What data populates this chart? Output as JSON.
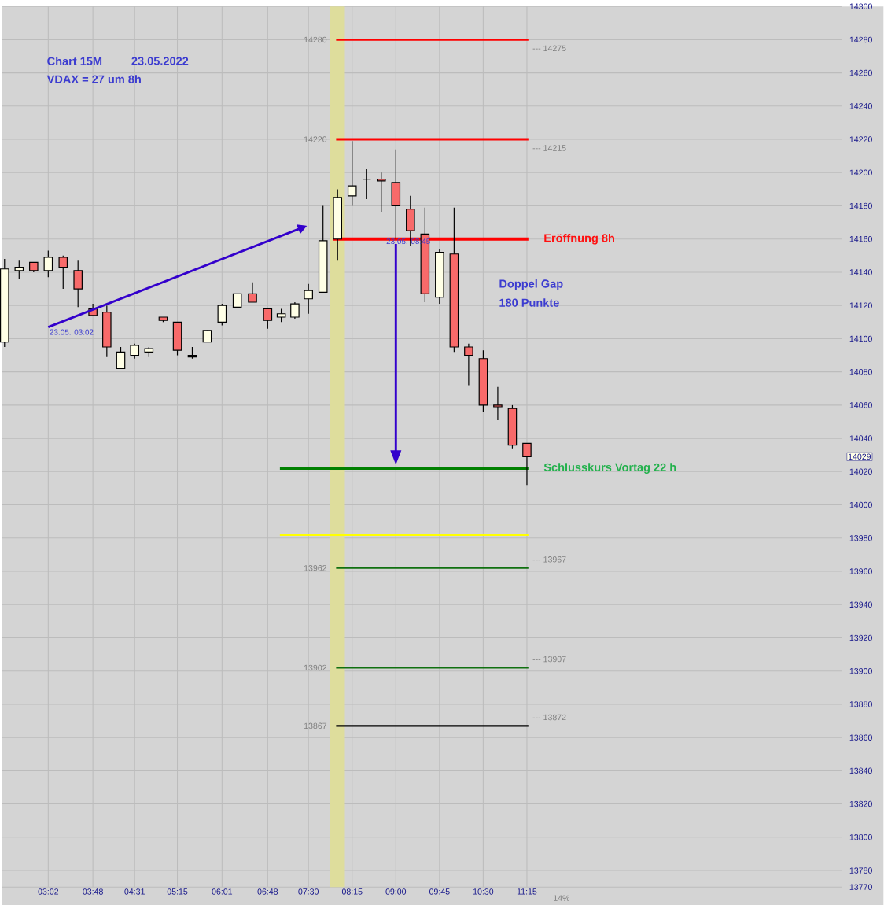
{
  "chart_data": {
    "type": "candlestick",
    "title": "Chart 15M",
    "subtitle": "23.05.2022",
    "x": [
      2.2833,
      2.5333,
      2.7833,
      3.0333,
      3.2889,
      3.5444,
      3.8,
      4.0389,
      4.2778,
      4.5167,
      4.7611,
      5.0056,
      5.25,
      5.5056,
      5.7611,
      6.0167,
      6.2778,
      6.5389,
      6.8,
      7.0333,
      7.2667,
      7.5,
      7.75,
      8.0,
      8.25,
      8.5,
      8.75,
      9.0,
      9.25,
      9.5,
      9.75,
      10.0,
      10.25,
      10.5,
      10.75,
      11.0,
      11.25
    ],
    "xlim": [
      2.24,
      16.65
    ],
    "xticks": [
      {
        "value": 3.0333,
        "label": "03:02"
      },
      {
        "value": 3.8,
        "label": "03:48"
      },
      {
        "value": 4.5167,
        "label": "04:31"
      },
      {
        "value": 5.25,
        "label": "05:15"
      },
      {
        "value": 6.0167,
        "label": "06:01"
      },
      {
        "value": 6.8,
        "label": "06:48"
      },
      {
        "value": 7.5,
        "label": "07:30"
      },
      {
        "value": 8.25,
        "label": "08:15"
      },
      {
        "value": 9.0,
        "label": "09:00"
      },
      {
        "value": 9.75,
        "label": "09:45"
      },
      {
        "value": 10.5,
        "label": "10:30"
      },
      {
        "value": 11.25,
        "label": "11:15"
      }
    ],
    "ohlc": [
      [
        14098,
        14148,
        14095,
        14142
      ],
      [
        14141,
        14147,
        14136,
        14143
      ],
      [
        14146,
        14146,
        14140,
        14141
      ],
      [
        14141,
        14153,
        14137,
        14149
      ],
      [
        14149,
        14150,
        14130,
        14143
      ],
      [
        14141,
        14147,
        14119,
        14130
      ],
      [
        14118,
        14121,
        14114,
        14114
      ],
      [
        14116,
        14120,
        14089,
        14095
      ],
      [
        14082,
        14095,
        14082,
        14092
      ],
      [
        14090,
        14097,
        14088,
        14096
      ],
      [
        14092,
        14095,
        14089,
        14094
      ],
      [
        14113,
        14113,
        14110,
        14111
      ],
      [
        14110,
        14110,
        14090,
        14093
      ],
      [
        14090,
        14095,
        14088,
        14089
      ],
      [
        14098,
        14105,
        14098,
        14105
      ],
      [
        14110,
        14121,
        14108,
        14120
      ],
      [
        14119,
        14127,
        14119,
        14127
      ],
      [
        14127,
        14134,
        14122,
        14122
      ],
      [
        14118,
        14118,
        14106,
        14111
      ],
      [
        14113,
        14118,
        14110,
        14115
      ],
      [
        14113,
        14122,
        14112,
        14121
      ],
      [
        14124,
        14133,
        14115,
        14129
      ],
      [
        14128,
        14180,
        14128,
        14159
      ],
      [
        14160,
        14190,
        14147,
        14185
      ],
      [
        14186,
        14219,
        14180,
        14192
      ],
      [
        14196,
        14202,
        14184,
        14196
      ],
      [
        14196,
        14200,
        14176,
        14195
      ],
      [
        14194,
        14214,
        14160,
        14180
      ],
      [
        14178,
        14186,
        14156,
        14165
      ],
      [
        14163,
        14179,
        14122,
        14127
      ],
      [
        14125,
        14154,
        14121,
        14152
      ],
      [
        14151,
        14179,
        14092,
        14095
      ],
      [
        14095,
        14097,
        14072,
        14090
      ],
      [
        14088,
        14093,
        14056,
        14060
      ],
      [
        14060,
        14071,
        14051,
        14059
      ],
      [
        14058,
        14060,
        14034,
        14036
      ],
      [
        14037,
        14037,
        14012,
        14029
      ]
    ],
    "ylim": [
      13770,
      14300
    ],
    "yticks": [
      13770,
      13780,
      13800,
      13820,
      13840,
      13860,
      13880,
      13900,
      13920,
      13940,
      13960,
      13980,
      14000,
      14020,
      14040,
      14060,
      14080,
      14100,
      14120,
      14140,
      14160,
      14180,
      14200,
      14220,
      14240,
      14260,
      14280,
      14300
    ],
    "grid": true,
    "ref_lines": [
      {
        "axis": "y",
        "value": 14280,
        "color": "#ff0000"
      },
      {
        "axis": "y",
        "value": 14220,
        "color": "#ff0000"
      },
      {
        "axis": "y",
        "value": 14160,
        "label": "Eröffnung 8h",
        "color": "#ff0000"
      },
      {
        "axis": "y",
        "value": 14022,
        "label": "Schlusskurs Vortag 22 h",
        "color": "#008000"
      },
      {
        "axis": "y",
        "value": 13982,
        "color": "#ffff00"
      },
      {
        "axis": "y",
        "value": 13962,
        "color": "#107010"
      },
      {
        "axis": "y",
        "value": 13902,
        "color": "#107010"
      },
      {
        "axis": "y",
        "value": 13867,
        "color": "#000000"
      }
    ],
    "bands": [
      {
        "axis": "x",
        "from": 7.875,
        "to": 8.125,
        "color": "#dedd9c"
      }
    ],
    "annotations": [
      "14280",
      "14220",
      "13962",
      "13902",
      "13867",
      "--- 14275",
      "--- 14215",
      "--- 13967",
      "--- 13907",
      "--- 13872",
      "23.05. 03:02",
      {
        "text": "23.05. 08:45",
        "x": 9.0,
        "y": 14160
      },
      "VDAX = 27 um 8h",
      "Doppel Gap",
      "180 Punkte",
      "14%",
      "14029"
    ]
  }
}
